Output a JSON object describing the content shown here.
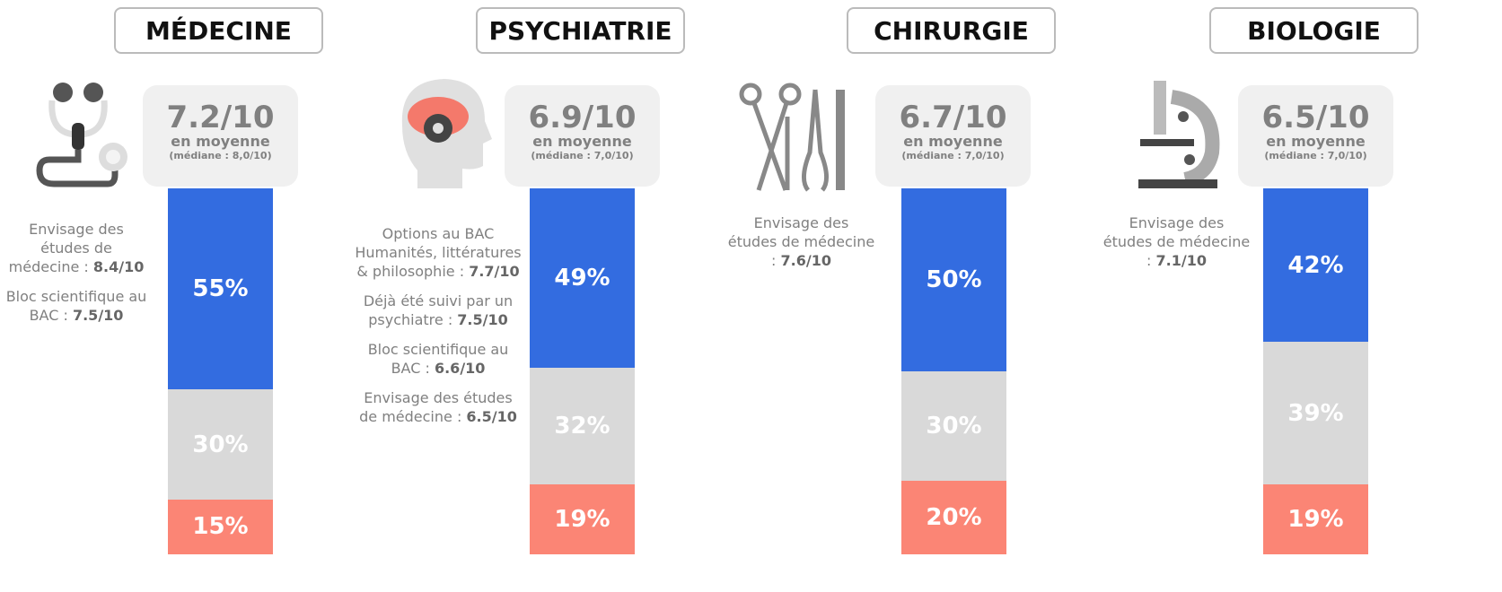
{
  "panels": [
    {
      "title": "MÉDECINE",
      "score": "7.2/10",
      "caption": "en moyenne",
      "median": "(médiane : 8,0/10)",
      "notes": [
        {
          "text": "Envisage des études de médecine :",
          "score": "8.4/10"
        },
        {
          "text": "Bloc scientifique au BAC :",
          "score": "7.5/10"
        }
      ],
      "values": [
        55,
        30,
        15
      ],
      "value_labels": [
        "55%",
        "30%",
        "15%"
      ]
    },
    {
      "title": "PSYCHIATRIE",
      "score": "6.9/10",
      "caption": "en moyenne",
      "median": "(médiane : 7,0/10)",
      "notes": [
        {
          "text": "Options au BAC Humanités, littératures & philosophie :",
          "score": "7.7/10"
        },
        {
          "text": "Déjà été suivi par un psychiatre :",
          "score": "7.5/10"
        },
        {
          "text": "Bloc scientifique au BAC :",
          "score": "6.6/10"
        },
        {
          "text": "Envisage des études de médecine :",
          "score": "6.5/10"
        }
      ],
      "values": [
        49,
        32,
        19
      ],
      "value_labels": [
        "49%",
        "32%",
        "19%"
      ]
    },
    {
      "title": "CHIRURGIE",
      "score": "6.7/10",
      "caption": "en moyenne",
      "median": "(médiane : 7,0/10)",
      "notes": [
        {
          "text": "Envisage des études de médecine :",
          "score": "7.6/10"
        }
      ],
      "values": [
        50,
        30,
        20
      ],
      "value_labels": [
        "50%",
        "30%",
        "20%"
      ]
    },
    {
      "title": "BIOLOGIE",
      "score": "6.5/10",
      "caption": "en moyenne",
      "median": "(médiane : 7,0/10)",
      "notes": [
        {
          "text": "Envisage des études de médecine :",
          "score": "7.1/10"
        }
      ],
      "values": [
        42,
        39,
        19
      ],
      "value_labels": [
        "42%",
        "39%",
        "19%"
      ]
    }
  ]
}
